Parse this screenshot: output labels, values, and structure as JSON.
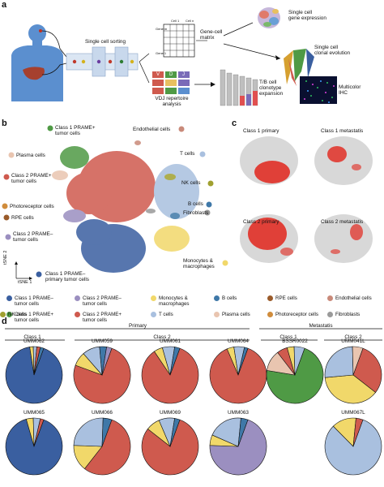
{
  "panels": {
    "a": "a",
    "b": "b",
    "c": "c",
    "d": "d"
  },
  "panel_a": {
    "sorting_label": "Single cell sorting",
    "matrix_label": "Gene-cell\nmatrix",
    "matrix_col1": "Cell 1",
    "matrix_coln": "Cell n",
    "matrix_row_top": "Gene m",
    "matrix_row_bottom": "Gene 1",
    "expression_label": "Single cell\ngene expression",
    "clonal_label": "Single cell\nclonal evolution",
    "vdj_label": "VDJ repertoire\nanalysis",
    "clonotype_label": "T/B cell\nclonotype\nexpansion",
    "ihc_label": "Multicolor\nIHC",
    "vdj_letters": [
      "V",
      "D",
      "J"
    ]
  },
  "panel_b": {
    "labels": {
      "c1_prame_plus": "Class 1 PRAME+\ntumor cells",
      "endothelial": "Endothelial cells",
      "plasma": "Plasma cells",
      "t_cells": "T cells",
      "c2_prame_plus": "Class 2 PRAME+\ntumor cells",
      "photoreceptor": "Photoreceptor cells",
      "nk": "NK cells",
      "rpe": "RPE cells",
      "b_cells": "B cells",
      "fibroblasts": "Fibroblasts",
      "c2_prame_minus": "Class 2 PRAME–\ntumor cells",
      "monocytes": "Monocytes &\nmacrophages",
      "c1_prame_minus": "Class 1 PRAME–\nprimary tumor cells"
    },
    "axis_y": "tSNE 2",
    "axis_x": "tSNE 1"
  },
  "legend": [
    {
      "label": "Class 1 PRAME–\ntumor cells",
      "color": "#3a5fa0"
    },
    {
      "label": "Class 2 PRAME–\ntumor cells",
      "color": "#9b8fc0"
    },
    {
      "label": "Monocytes &\nmacrophages",
      "color": "#f1d86a"
    },
    {
      "label": "B cells",
      "color": "#3f78a8"
    },
    {
      "label": "RPE cells",
      "color": "#9a5b2a"
    },
    {
      "label": "Endothelial cells",
      "color": "#c98a7a"
    },
    {
      "label": "Class 1 PRAME+\ntumor cells",
      "color": "#4f9a45"
    },
    {
      "label": "Class 2 PRAME+\ntumor cells",
      "color": "#cf5a4e"
    },
    {
      "label": "T cells",
      "color": "#a9c0df"
    },
    {
      "label": "Plasma cells",
      "color": "#e9c5b0"
    },
    {
      "label": "Photoreceptor cells",
      "color": "#d08c3c"
    },
    {
      "label": "Fibroblasts",
      "color": "#9a9a9a"
    },
    {
      "label": "NK cells",
      "color": "#a0a030"
    }
  ],
  "panel_c": {
    "titles": [
      "Class 1 primary",
      "Class 1 metastatis",
      "Class 2 primary",
      "Class 2 metastatis"
    ]
  },
  "panel_d": {
    "primary_label": "Primary",
    "metastatis_label": "Metastatis",
    "class1": "Class 1",
    "class2": "Class 2",
    "met_class1": "Class 1",
    "met_class2": "Class 2",
    "samples_row1": [
      "UMM062",
      "UMM059",
      "UMM061",
      "UMM064",
      "BSSR0022",
      "UMM041L"
    ],
    "samples_row2": [
      "UMM065",
      "UMM066",
      "UMM069",
      "UMM063",
      "UMM067L"
    ]
  },
  "colors": {
    "c1_minus": "#3a5fa0",
    "c1_plus": "#4f9a45",
    "c2_plus": "#cf5a4e",
    "c2_minus": "#9b8fc0",
    "mono": "#f1d86a",
    "t": "#a9c0df",
    "plasma": "#e9c5b0",
    "b": "#3f78a8",
    "endo": "#c98a7a",
    "fibro": "#9a9a9a",
    "nk": "#a0a030",
    "rpe": "#9a5b2a",
    "photo": "#d08c3c",
    "accent_red": "#e2261c"
  },
  "chart_data": [
    {
      "type": "pie",
      "title": "UMM062",
      "categories": [
        "Class 1 PRAME–",
        "Monocytes",
        "T cells",
        "Class 2 PRAME+",
        "B cells"
      ],
      "values": [
        92,
        2,
        2,
        2,
        2
      ]
    },
    {
      "type": "pie",
      "title": "UMM059",
      "categories": [
        "Class 2 PRAME+",
        "Monocytes",
        "T cells",
        "B cells",
        "Class 2 PRAME–"
      ],
      "values": [
        75,
        8,
        10,
        4,
        3
      ]
    },
    {
      "type": "pie",
      "title": "UMM061",
      "categories": [
        "Class 2 PRAME+",
        "Monocytes",
        "T cells",
        "B cells"
      ],
      "values": [
        85,
        5,
        7,
        3
      ]
    },
    {
      "type": "pie",
      "title": "UMM064",
      "categories": [
        "Class 2 PRAME+",
        "Monocytes",
        "T cells",
        "B cells"
      ],
      "values": [
        88,
        4,
        6,
        2
      ]
    },
    {
      "type": "pie",
      "title": "BSSR0022",
      "categories": [
        "Class 1 PRAME+",
        "Plasma cells",
        "Class 2 PRAME+",
        "Monocytes",
        "T cells"
      ],
      "values": [
        72,
        12,
        6,
        4,
        6
      ]
    },
    {
      "type": "pie",
      "title": "UMM041L",
      "categories": [
        "Class 2 PRAME+",
        "Monocytes",
        "T cells",
        "Plasma cells"
      ],
      "values": [
        30,
        38,
        26,
        6
      ]
    },
    {
      "type": "pie",
      "title": "UMM065",
      "categories": [
        "Class 1 PRAME–",
        "Monocytes",
        "T cells",
        "Class 2 PRAME+"
      ],
      "values": [
        90,
        4,
        4,
        2
      ]
    },
    {
      "type": "pie",
      "title": "UMM066",
      "categories": [
        "Class 2 PRAME+",
        "Monocytes",
        "T cells",
        "B cells"
      ],
      "values": [
        55,
        15,
        25,
        5
      ]
    },
    {
      "type": "pie",
      "title": "UMM069",
      "categories": [
        "Class 2 PRAME+",
        "Monocytes",
        "T cells",
        "B cells"
      ],
      "values": [
        80,
        8,
        9,
        3
      ]
    },
    {
      "type": "pie",
      "title": "UMM063",
      "categories": [
        "Class 2 PRAME–",
        "Monocytes",
        "T cells",
        "B cells"
      ],
      "values": [
        70,
        6,
        20,
        4
      ]
    },
    {
      "type": "pie",
      "title": "UMM067L",
      "categories": [
        "T cells",
        "Monocytes",
        "Class 2 PRAME+"
      ],
      "values": [
        82,
        14,
        4
      ]
    }
  ]
}
